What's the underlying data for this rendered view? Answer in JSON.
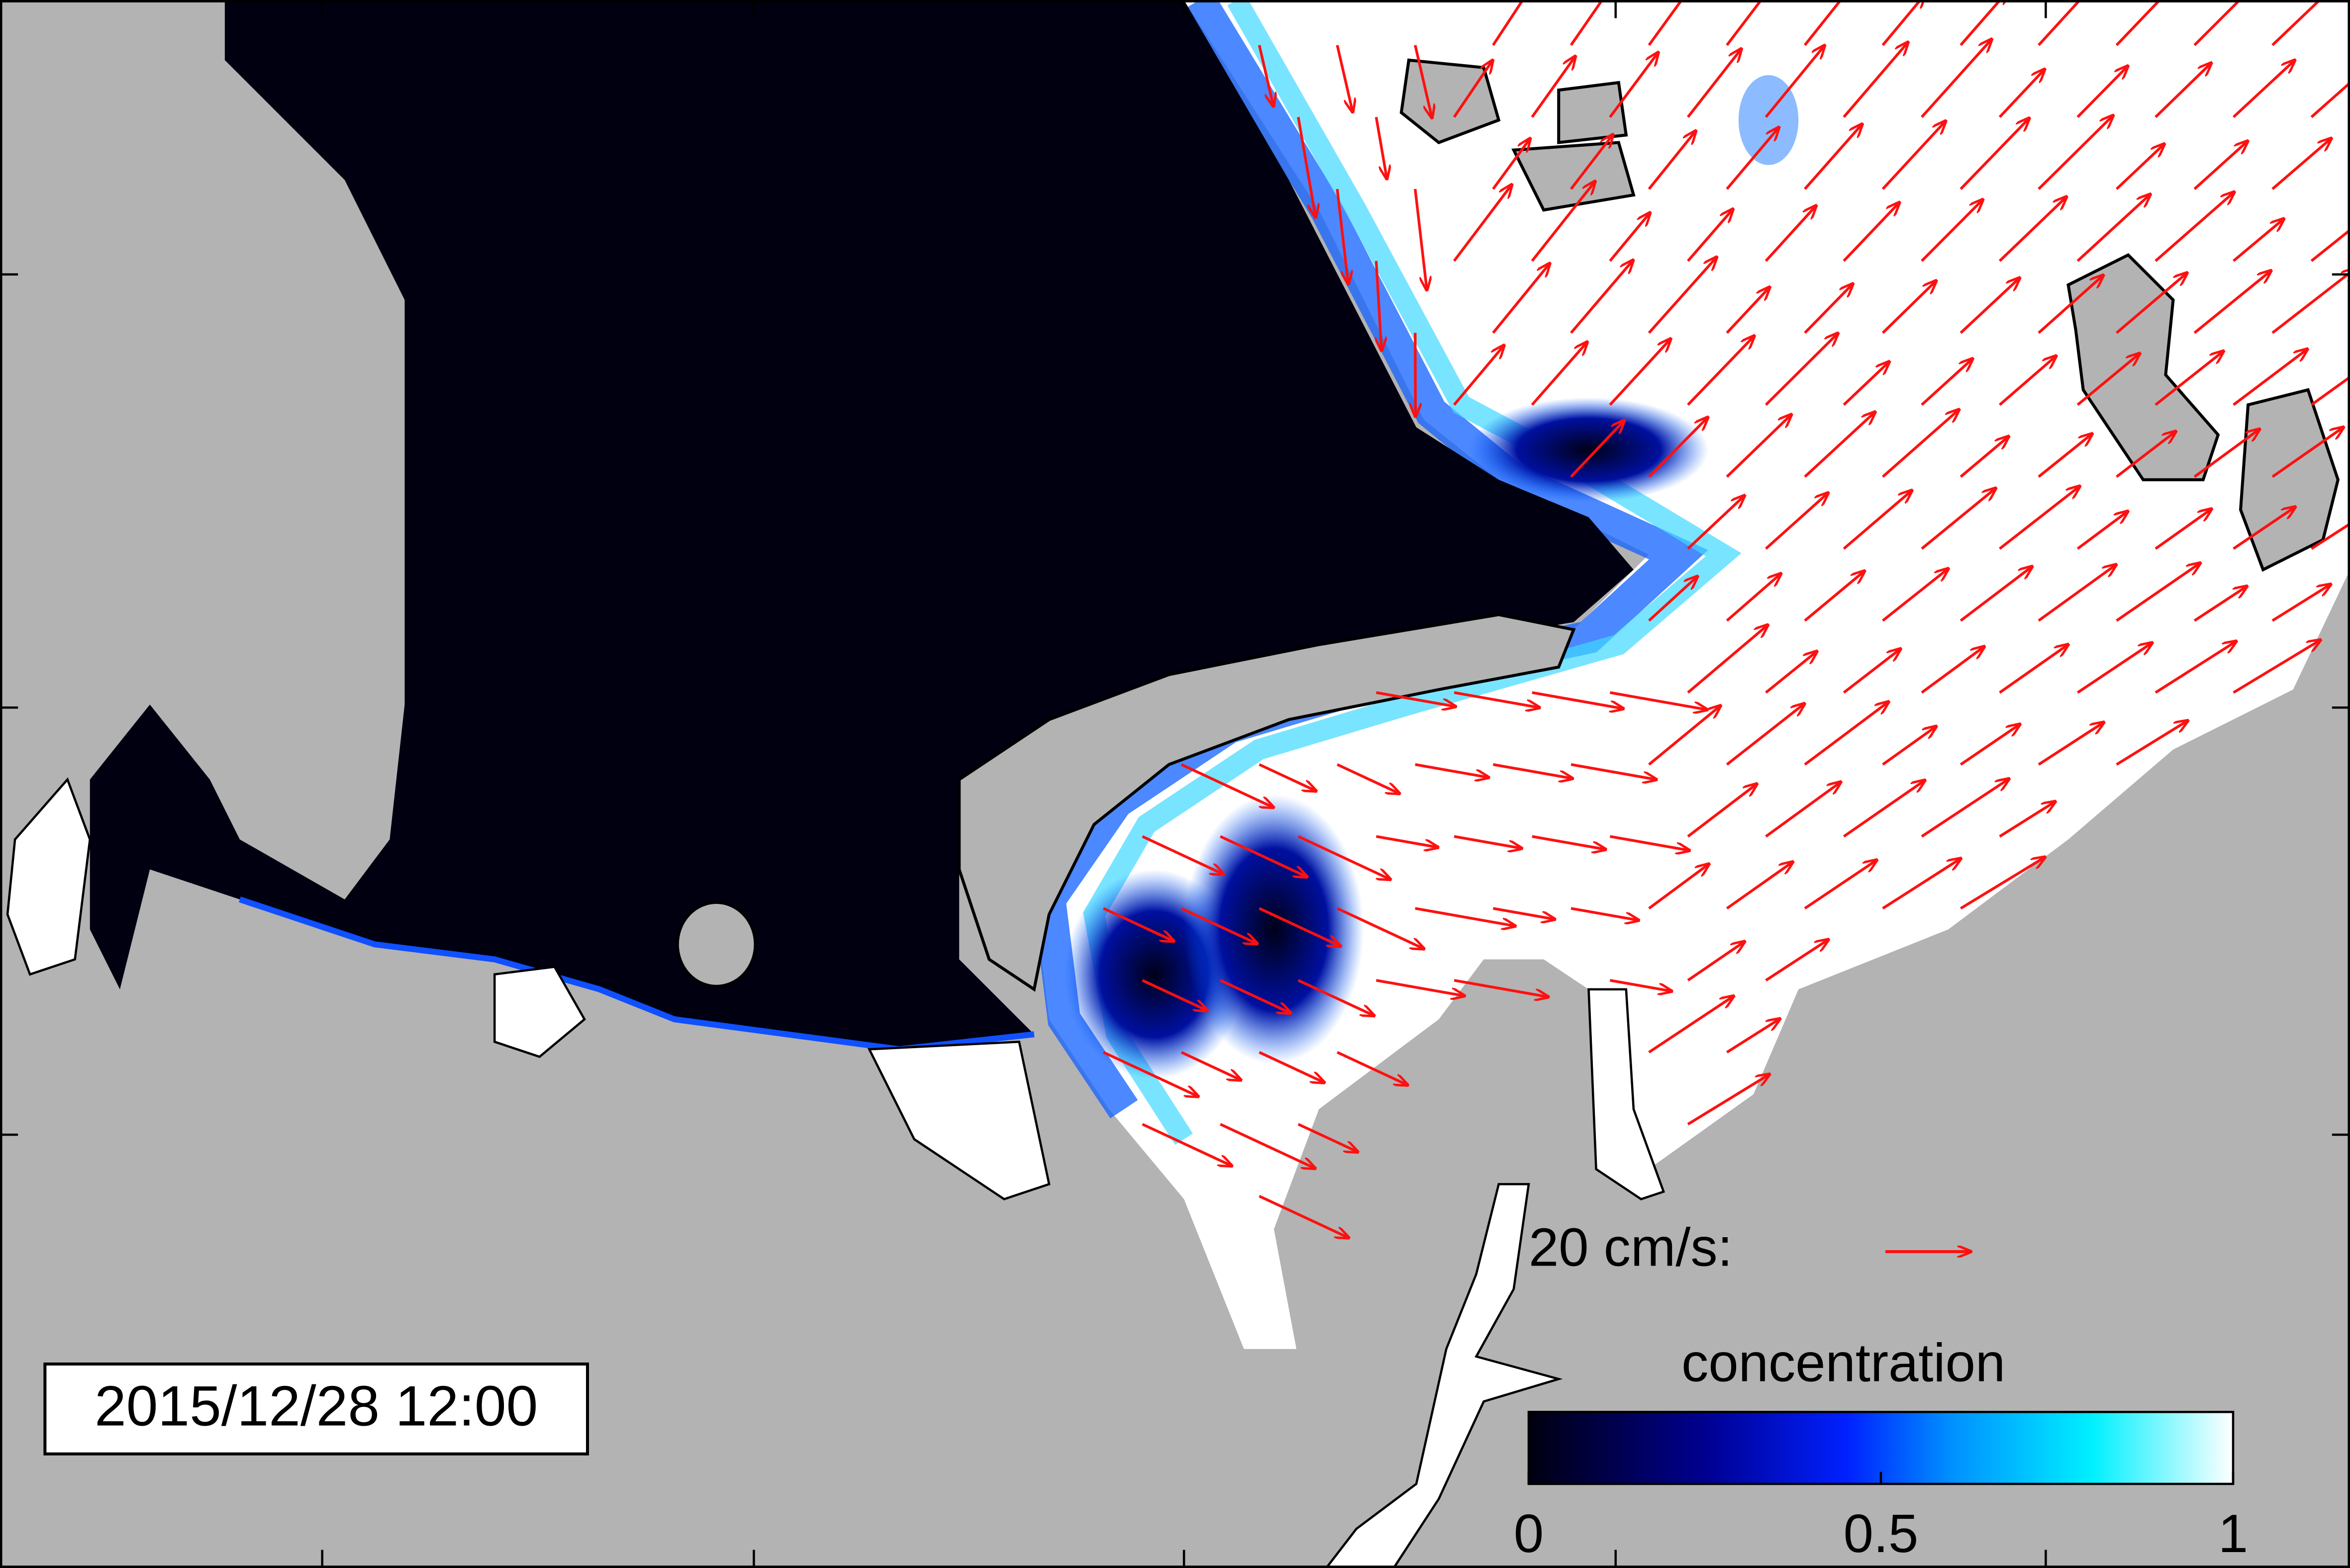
{
  "timestamp": "2015/12/28 12:00",
  "vector_scale": {
    "label": "20 cm/s:"
  },
  "colorbar": {
    "title": "concentration",
    "range": [
      0,
      1
    ],
    "ticks": [
      0,
      0.5,
      1
    ]
  }
}
